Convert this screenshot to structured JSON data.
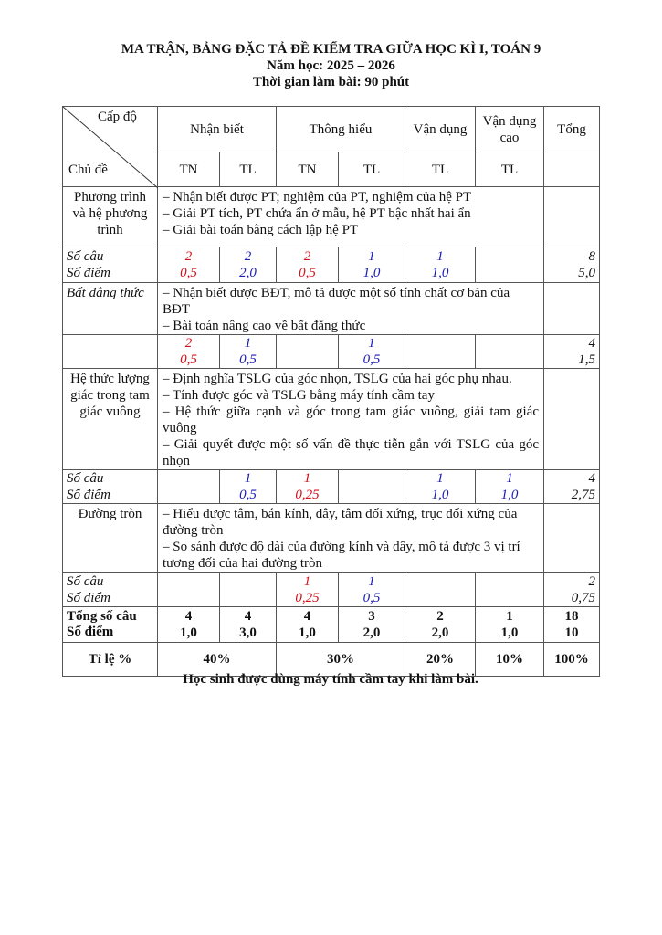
{
  "header": {
    "title": "MA TRẬN, BẢNG ĐẶC TẢ ĐỀ KIỂM TRA GIỮA HỌC KÌ I, TOÁN 9",
    "year": "Năm học: 2025 – 2026",
    "time": "Thời gian làm bài: 90 phút"
  },
  "table": {
    "corner_top": "Cấp độ",
    "corner_bottom": "Chủ đề",
    "levels": [
      "Nhận biết",
      "Thông hiểu",
      "Vận dụng",
      "Vận dụng cao",
      "Tổng"
    ],
    "sub": [
      "TN",
      "TL",
      "TN",
      "TL",
      "TL",
      "TL"
    ],
    "label_q": "Số câu",
    "label_p": "Số điểm",
    "topics": [
      {
        "name": "Phương trình và hệ phương trình",
        "desc": [
          "– Nhận biết được PT; nghiệm của PT, nghiệm của hệ PT",
          "– Giải PT tích,  PT chứa ẩn ở mẫu, hệ PT bậc nhất hai ẩn",
          "– Giải bài toán bằng cách lập hệ PT"
        ],
        "cells": [
          {
            "q": "2",
            "p": "0,5",
            "color": "red"
          },
          {
            "q": "2",
            "p": "2,0",
            "color": "blue"
          },
          {
            "q": "2",
            "p": "0,5",
            "color": "red"
          },
          {
            "q": "1",
            "p": "1,0",
            "color": "blue"
          },
          {
            "q": "1",
            "p": "1,0",
            "color": "blue"
          },
          {
            "q": "",
            "p": "",
            "color": ""
          },
          {
            "q": "8",
            "p": "5,0",
            "color": "black"
          }
        ]
      },
      {
        "name": "Bất đẳng thức",
        "desc": [
          "– Nhận biết được BĐT, mô tả được một số tính chất cơ bản của BĐT",
          "– Bài toán nâng cao về bất đẳng thức"
        ],
        "cells": [
          {
            "q": "2",
            "p": "0,5",
            "color": "red"
          },
          {
            "q": "1",
            "p": "0,5",
            "color": "blue"
          },
          {
            "q": "",
            "p": "",
            "color": ""
          },
          {
            "q": "1",
            "p": "0,5",
            "color": "blue"
          },
          {
            "q": "",
            "p": "",
            "color": ""
          },
          {
            "q": "",
            "p": "",
            "color": ""
          },
          {
            "q": "4",
            "p": "1,5",
            "color": "black"
          }
        ]
      },
      {
        "name": "Hệ thức lượng giác trong tam giác vuông",
        "desc": [
          "– Định nghĩa TSLG của góc nhọn, TSLG của hai góc phụ nhau.",
          "– Tính được góc và TSLG bằng máy tính cầm tay",
          "– Hệ thức giữa cạnh và góc trong tam giác vuông, giải tam giác vuông",
          "– Giải quyết được một số vấn đề thực tiễn gắn với TSLG của góc nhọn"
        ],
        "cells": [
          {
            "q": "",
            "p": "",
            "color": ""
          },
          {
            "q": "1",
            "p": "0,5",
            "color": "blue"
          },
          {
            "q": "1",
            "p": "0,25",
            "color": "red"
          },
          {
            "q": "",
            "p": "",
            "color": ""
          },
          {
            "q": "1",
            "p": "1,0",
            "color": "blue"
          },
          {
            "q": "1",
            "p": "1,0",
            "color": "blue"
          },
          {
            "q": "4",
            "p": "2,75",
            "color": "black"
          }
        ]
      },
      {
        "name": "Đường tròn",
        "desc": [
          "– Hiểu được tâm, bán kính, dây, tâm đối xứng, trục đối xứng của đường tròn",
          "– So sánh được độ dài của đường kính và dây, mô tả được 3 vị trí tương đối của hai đường tròn"
        ],
        "cells": [
          {
            "q": "",
            "p": "",
            "color": ""
          },
          {
            "q": "",
            "p": "",
            "color": ""
          },
          {
            "q": "1",
            "p": "0,25",
            "color": "red"
          },
          {
            "q": "1",
            "p": "0,5",
            "color": "blue"
          },
          {
            "q": "",
            "p": "",
            "color": ""
          },
          {
            "q": "",
            "p": "",
            "color": ""
          },
          {
            "q": "2",
            "p": "0,75",
            "color": "black"
          }
        ]
      }
    ],
    "total_label_q": "Tổng số câu",
    "total_label_p": "Số điểm",
    "totals": [
      {
        "q": "4",
        "p": "1,0"
      },
      {
        "q": "4",
        "p": "3,0"
      },
      {
        "q": "4",
        "p": "1,0"
      },
      {
        "q": "3",
        "p": "2,0"
      },
      {
        "q": "2",
        "p": "2,0"
      },
      {
        "q": "1",
        "p": "1,0"
      },
      {
        "q": "18",
        "p": "10"
      }
    ],
    "ratio_label": "Tỉ lệ %",
    "ratios": [
      "40%",
      "30%",
      "20%",
      "10%",
      "100%"
    ]
  },
  "footer": "Học sinh được dùng máy tính cầm tay khi làm bài.",
  "colors": {
    "red": "#d6101a",
    "blue": "#1b1bb8"
  }
}
